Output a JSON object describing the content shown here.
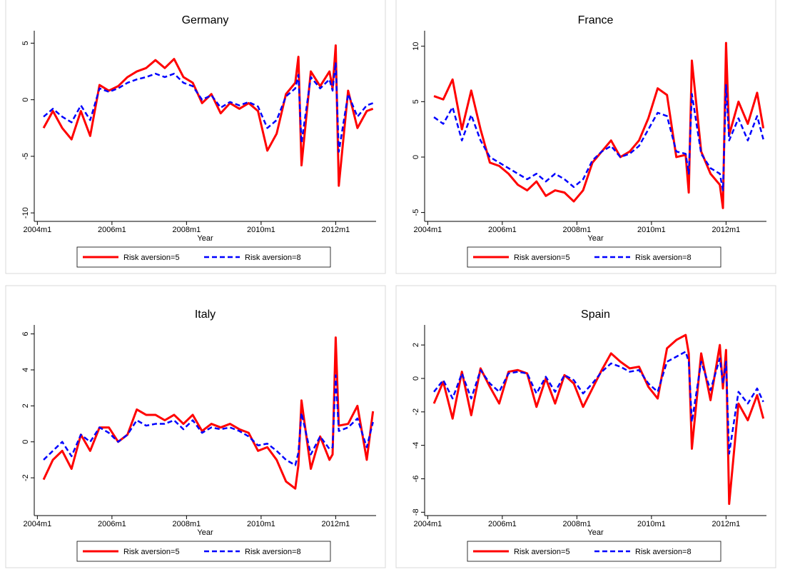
{
  "chart_data": [
    {
      "type": "line",
      "title": "Germany",
      "x_label": "Year",
      "x": [
        "2004m3",
        "2004m6",
        "2004m9",
        "2004m12",
        "2005m3",
        "2005m6",
        "2005m9",
        "2005m12",
        "2006m3",
        "2006m6",
        "2006m9",
        "2006m12",
        "2007m3",
        "2007m6",
        "2007m9",
        "2007m12",
        "2008m3",
        "2008m6",
        "2008m9",
        "2008m12",
        "2009m3",
        "2009m6",
        "2009m9",
        "2009m12",
        "2010m3",
        "2010m6",
        "2010m9",
        "2010m12",
        "2011m1",
        "2011m2",
        "2011m5",
        "2011m8",
        "2011m11",
        "2011m12",
        "2012m1",
        "2012m2",
        "2012m5",
        "2012m8",
        "2012m11",
        "2013m1"
      ],
      "xlim": [
        "2003m12",
        "2013m2"
      ],
      "xticks": [
        "2004m1",
        "2006m1",
        "2008m1",
        "2010m1",
        "2012m1"
      ],
      "ylim": [
        -10.75,
        6.1
      ],
      "yticks": [
        -10,
        -5,
        0,
        5
      ],
      "series": [
        {
          "name": "Risk aversion=5",
          "color": "#ff0000",
          "line_style": "solid",
          "values": [
            -2.5,
            -1,
            -2.5,
            -3.5,
            -1,
            -3.2,
            1.3,
            0.8,
            1.2,
            2,
            2.5,
            2.8,
            3.5,
            2.8,
            3.6,
            2,
            1.5,
            -0.3,
            0.5,
            -1.2,
            -0.3,
            -0.8,
            -0.3,
            -1,
            -4.5,
            -3,
            0.5,
            1.5,
            3.8,
            -5.8,
            2.5,
            1.2,
            2.5,
            1,
            4.8,
            -7.6,
            0.8,
            -2.5,
            -1,
            -0.8
          ]
        },
        {
          "name": "Risk aversion=8",
          "color": "#0000ff",
          "line_style": "dashed",
          "values": [
            -1.5,
            -0.8,
            -1.5,
            -2,
            -0.5,
            -1.8,
            1,
            0.7,
            1,
            1.5,
            1.8,
            2,
            2.3,
            2,
            2.3,
            1.5,
            1.2,
            0,
            0.4,
            -0.7,
            -0.2,
            -0.5,
            -0.2,
            -0.6,
            -2.5,
            -1.8,
            0.3,
            1,
            2.2,
            -3.8,
            2,
            1,
            1.8,
            0.8,
            3.3,
            -4.6,
            0.5,
            -1.5,
            -0.5,
            -0.3
          ]
        }
      ]
    },
    {
      "type": "line",
      "title": "France",
      "x_label": "Year",
      "x": [
        "2004m3",
        "2004m6",
        "2004m9",
        "2004m12",
        "2005m3",
        "2005m6",
        "2005m9",
        "2005m12",
        "2006m3",
        "2006m6",
        "2006m9",
        "2006m12",
        "2007m3",
        "2007m6",
        "2007m9",
        "2007m12",
        "2008m3",
        "2008m6",
        "2008m9",
        "2008m12",
        "2009m3",
        "2009m6",
        "2009m9",
        "2009m12",
        "2010m3",
        "2010m6",
        "2010m9",
        "2010m12",
        "2011m1",
        "2011m2",
        "2011m5",
        "2011m8",
        "2011m11",
        "2011m12",
        "2012m1",
        "2012m2",
        "2012m5",
        "2012m8",
        "2012m11",
        "2013m1"
      ],
      "xlim": [
        "2003m12",
        "2013m2"
      ],
      "xticks": [
        "2004m1",
        "2006m1",
        "2008m1",
        "2010m1",
        "2012m1"
      ],
      "ylim": [
        -5.8,
        11.4
      ],
      "yticks": [
        -5,
        0,
        5,
        10
      ],
      "series": [
        {
          "name": "Risk aversion=5",
          "color": "#ff0000",
          "line_style": "solid",
          "values": [
            5.5,
            5.2,
            7,
            2.5,
            6,
            2.5,
            -0.5,
            -0.8,
            -1.5,
            -2.5,
            -3,
            -2.2,
            -3.5,
            -3,
            -3.2,
            -4,
            -3,
            -0.5,
            0.5,
            1.5,
            0,
            0.5,
            1.5,
            3.5,
            6.2,
            5.6,
            0,
            0.2,
            -3.2,
            8.7,
            0.5,
            -1.5,
            -2.5,
            -4.6,
            10.3,
            2,
            5,
            3,
            5.8,
            2.6
          ]
        },
        {
          "name": "Risk aversion=8",
          "color": "#0000ff",
          "line_style": "dashed",
          "values": [
            3.6,
            3,
            4.5,
            1.5,
            3.8,
            1.5,
            0,
            -0.5,
            -1,
            -1.5,
            -2,
            -1.5,
            -2.2,
            -1.5,
            -2,
            -2.7,
            -2,
            -0.3,
            0.5,
            1,
            0,
            0.3,
            1,
            2.5,
            4,
            3.7,
            0.5,
            0.3,
            -1.5,
            5.7,
            0.3,
            -1,
            -1.5,
            -3,
            6.5,
            1.5,
            3.5,
            1.5,
            3.7,
            1.6
          ]
        }
      ]
    },
    {
      "type": "line",
      "title": "Italy",
      "x_label": "Year",
      "x": [
        "2004m3",
        "2004m6",
        "2004m9",
        "2004m12",
        "2005m3",
        "2005m6",
        "2005m9",
        "2005m12",
        "2006m3",
        "2006m6",
        "2006m9",
        "2006m12",
        "2007m3",
        "2007m6",
        "2007m9",
        "2007m12",
        "2008m3",
        "2008m6",
        "2008m9",
        "2008m12",
        "2009m3",
        "2009m6",
        "2009m9",
        "2009m12",
        "2010m3",
        "2010m6",
        "2010m9",
        "2010m12",
        "2011m1",
        "2011m2",
        "2011m5",
        "2011m8",
        "2011m11",
        "2011m12",
        "2012m1",
        "2012m2",
        "2012m5",
        "2012m8",
        "2012m11",
        "2013m1"
      ],
      "xlim": [
        "2003m12",
        "2013m2"
      ],
      "xticks": [
        "2004m1",
        "2006m1",
        "2008m1",
        "2010m1",
        "2012m1"
      ],
      "ylim": [
        -4.1,
        6.5
      ],
      "yticks": [
        -2,
        0,
        2,
        4,
        6
      ],
      "series": [
        {
          "name": "Risk aversion=5",
          "color": "#ff0000",
          "line_style": "solid",
          "values": [
            -2.1,
            -1,
            -0.5,
            -1.5,
            0.4,
            -0.5,
            0.8,
            0.8,
            0,
            0.4,
            1.8,
            1.5,
            1.5,
            1.2,
            1.5,
            1,
            1.5,
            0.6,
            1,
            0.8,
            1,
            0.7,
            0.5,
            -0.5,
            -0.3,
            -1,
            -2.2,
            -2.6,
            -1.3,
            2.3,
            -1.5,
            0.3,
            -1,
            -0.7,
            5.8,
            0.9,
            1,
            2,
            -1,
            1.7
          ]
        },
        {
          "name": "Risk aversion=8",
          "color": "#0000ff",
          "line_style": "dashed",
          "values": [
            -1,
            -0.5,
            0,
            -0.8,
            0.4,
            0,
            0.8,
            0.5,
            0,
            0.4,
            1.2,
            0.9,
            1,
            1,
            1.2,
            0.7,
            1.2,
            0.5,
            0.8,
            0.7,
            0.8,
            0.6,
            0.3,
            -0.2,
            -0.1,
            -0.5,
            -1,
            -1.3,
            -0.6,
            1.6,
            -0.7,
            0.3,
            -0.4,
            -0.3,
            3.7,
            0.6,
            0.8,
            1.3,
            -0.3,
            1.1
          ]
        }
      ]
    },
    {
      "type": "line",
      "title": "Spain",
      "x_label": "Year",
      "x": [
        "2004m3",
        "2004m6",
        "2004m9",
        "2004m12",
        "2005m3",
        "2005m6",
        "2005m9",
        "2005m12",
        "2006m3",
        "2006m6",
        "2006m9",
        "2006m12",
        "2007m3",
        "2007m6",
        "2007m9",
        "2007m12",
        "2008m3",
        "2008m6",
        "2008m9",
        "2008m12",
        "2009m3",
        "2009m6",
        "2009m9",
        "2009m12",
        "2010m3",
        "2010m6",
        "2010m9",
        "2010m12",
        "2011m1",
        "2011m2",
        "2011m5",
        "2011m8",
        "2011m11",
        "2011m12",
        "2012m1",
        "2012m2",
        "2012m5",
        "2012m8",
        "2012m11",
        "2013m1"
      ],
      "xlim": [
        "2003m12",
        "2013m2"
      ],
      "xticks": [
        "2004m1",
        "2006m1",
        "2008m1",
        "2010m1",
        "2012m1"
      ],
      "ylim": [
        -8.2,
        3.2
      ],
      "yticks": [
        -8,
        -6,
        -4,
        -2,
        0,
        2
      ],
      "series": [
        {
          "name": "Risk aversion=5",
          "color": "#ff0000",
          "line_style": "solid",
          "values": [
            -1.5,
            -0.2,
            -2.4,
            0.4,
            -2.2,
            0.6,
            -0.5,
            -1.5,
            0.4,
            0.5,
            0.3,
            -1.7,
            0,
            -1.5,
            0.2,
            -0.3,
            -1.7,
            -0.6,
            0.5,
            1.5,
            1,
            0.6,
            0.7,
            -0.5,
            -1.2,
            1.8,
            2.3,
            2.6,
            1.5,
            -4.2,
            1.5,
            -1.3,
            2,
            -0.6,
            1.7,
            -7.5,
            -1.5,
            -2.5,
            -1,
            -2.4
          ]
        },
        {
          "name": "Risk aversion=8",
          "color": "#0000ff",
          "line_style": "dashed",
          "values": [
            -0.8,
            -0.1,
            -1.2,
            0.3,
            -1.2,
            0.5,
            -0.3,
            -0.8,
            0.3,
            0.4,
            0.3,
            -0.9,
            0.1,
            -0.8,
            0.2,
            -0.1,
            -0.9,
            -0.3,
            0.4,
            0.9,
            0.7,
            0.4,
            0.5,
            -0.3,
            -0.8,
            1,
            1.3,
            1.6,
            1,
            -2.6,
            1,
            -0.7,
            1.2,
            -0.3,
            1,
            -4.5,
            -0.8,
            -1.5,
            -0.6,
            -1.4
          ]
        }
      ]
    }
  ]
}
